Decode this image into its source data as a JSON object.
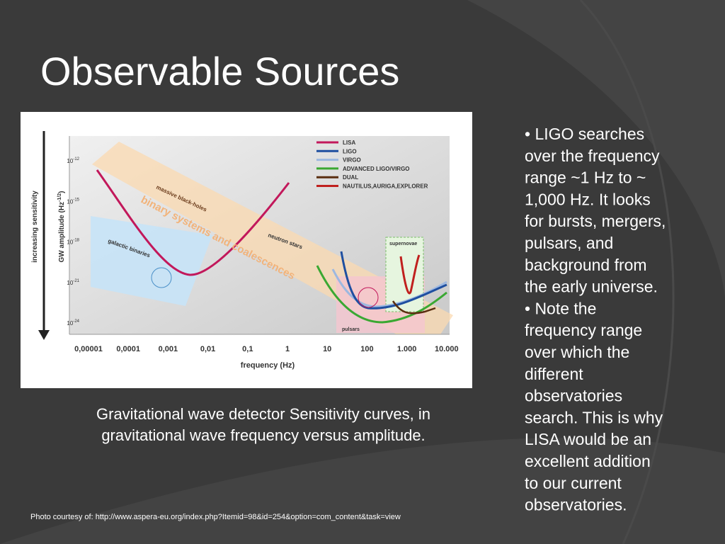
{
  "title": "Observable Sources",
  "figure": {
    "y_label_outer": "increasing sensitivity",
    "y_label": "GW amplitude (Hz",
    "y_label_exp": "-1/2",
    "y_label_end": ")",
    "x_label": "frequency (Hz)",
    "x_ticks": [
      "0,00001",
      "0,0001",
      "0,001",
      "0,01",
      "0,1",
      "1",
      "10",
      "100",
      "1.000",
      "10.000"
    ],
    "y_ticks": [
      {
        "base": "10",
        "exp": "-12"
      },
      {
        "base": "10",
        "exp": "-15"
      },
      {
        "base": "10",
        "exp": "-18"
      },
      {
        "base": "10",
        "exp": "-21"
      },
      {
        "base": "10",
        "exp": "-24"
      }
    ],
    "legend": [
      {
        "name": "LISA",
        "color": "#c2185b"
      },
      {
        "name": "LIGO",
        "color": "#1f4fa0"
      },
      {
        "name": "VIRGO",
        "color": "#9db8e0"
      },
      {
        "name": "ADVANCED LIGO/VIRGO",
        "color": "#3aa832"
      },
      {
        "name": "DUAL",
        "color": "#5a2e10"
      },
      {
        "name": "NAUTILUS,AURIGA,EXPLORER",
        "color": "#c0201e"
      }
    ],
    "regions": {
      "massive": "massive black-holes",
      "binary": "binary systems and coalescences",
      "galactic": "galactic binaries",
      "neutron": "neutron stars",
      "supernovae": "supernovae",
      "pulsars": "pulsars"
    }
  },
  "caption": [
    "Gravitational wave detector Sensitivity curves, in",
    "gravitational wave frequency versus amplitude."
  ],
  "bullets": [
    [
      "• LIGO searches",
      "over the frequency",
      "range ~1 Hz to ~",
      "1,000 Hz. It looks",
      "for bursts, mergers,",
      "pulsars, and",
      "background from",
      "the early universe."
    ],
    [
      "• Note the",
      "frequency range",
      "over which the",
      "different",
      "observatories",
      "search. This is why",
      "LISA would be an",
      "excellent addition",
      "to our current",
      "observatories."
    ]
  ],
  "credit": "Photo courtesy of: http://www.aspera-eu.org/index.php?Itemid=98&id=254&option=com_content&task=view"
}
